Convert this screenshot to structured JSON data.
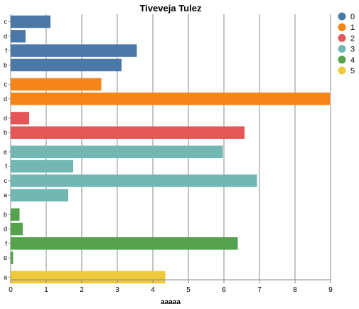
{
  "chart_data": {
    "type": "bar",
    "orientation": "horizontal",
    "title": "Tiveveja Tulez",
    "xlabel": "aaaaa",
    "ylabel": "",
    "xlim": [
      0,
      9
    ],
    "xticks": [
      "0",
      "1",
      "2",
      "3",
      "4",
      "5",
      "6",
      "7",
      "8",
      "9"
    ],
    "grid": true,
    "legend_position": "top-right",
    "groups": [
      {
        "name": "0",
        "color": "#4c78a8",
        "bars": [
          {
            "category": "c",
            "value": 1.12
          },
          {
            "category": "d",
            "value": 0.42
          },
          {
            "category": "f",
            "value": 3.55
          },
          {
            "category": "b",
            "value": 3.12
          }
        ]
      },
      {
        "name": "1",
        "color": "#f58518",
        "bars": [
          {
            "category": "c",
            "value": 2.55
          },
          {
            "category": "d",
            "value": 8.98
          }
        ]
      },
      {
        "name": "2",
        "color": "#e45756",
        "bars": [
          {
            "category": "d",
            "value": 0.52
          },
          {
            "category": "b",
            "value": 6.58
          }
        ]
      },
      {
        "name": "3",
        "color": "#72b7b2",
        "bars": [
          {
            "category": "e",
            "value": 5.97
          },
          {
            "category": "f",
            "value": 1.76
          },
          {
            "category": "c",
            "value": 6.93
          },
          {
            "category": "a",
            "value": 1.62
          }
        ]
      },
      {
        "name": "4",
        "color": "#54a24b",
        "bars": [
          {
            "category": "b",
            "value": 0.25
          },
          {
            "category": "d",
            "value": 0.34
          },
          {
            "category": "f",
            "value": 6.39
          },
          {
            "category": "e",
            "value": 0.07
          }
        ]
      },
      {
        "name": "5",
        "color": "#eeca3b",
        "bars": [
          {
            "category": "a",
            "value": 4.35
          }
        ]
      }
    ]
  }
}
